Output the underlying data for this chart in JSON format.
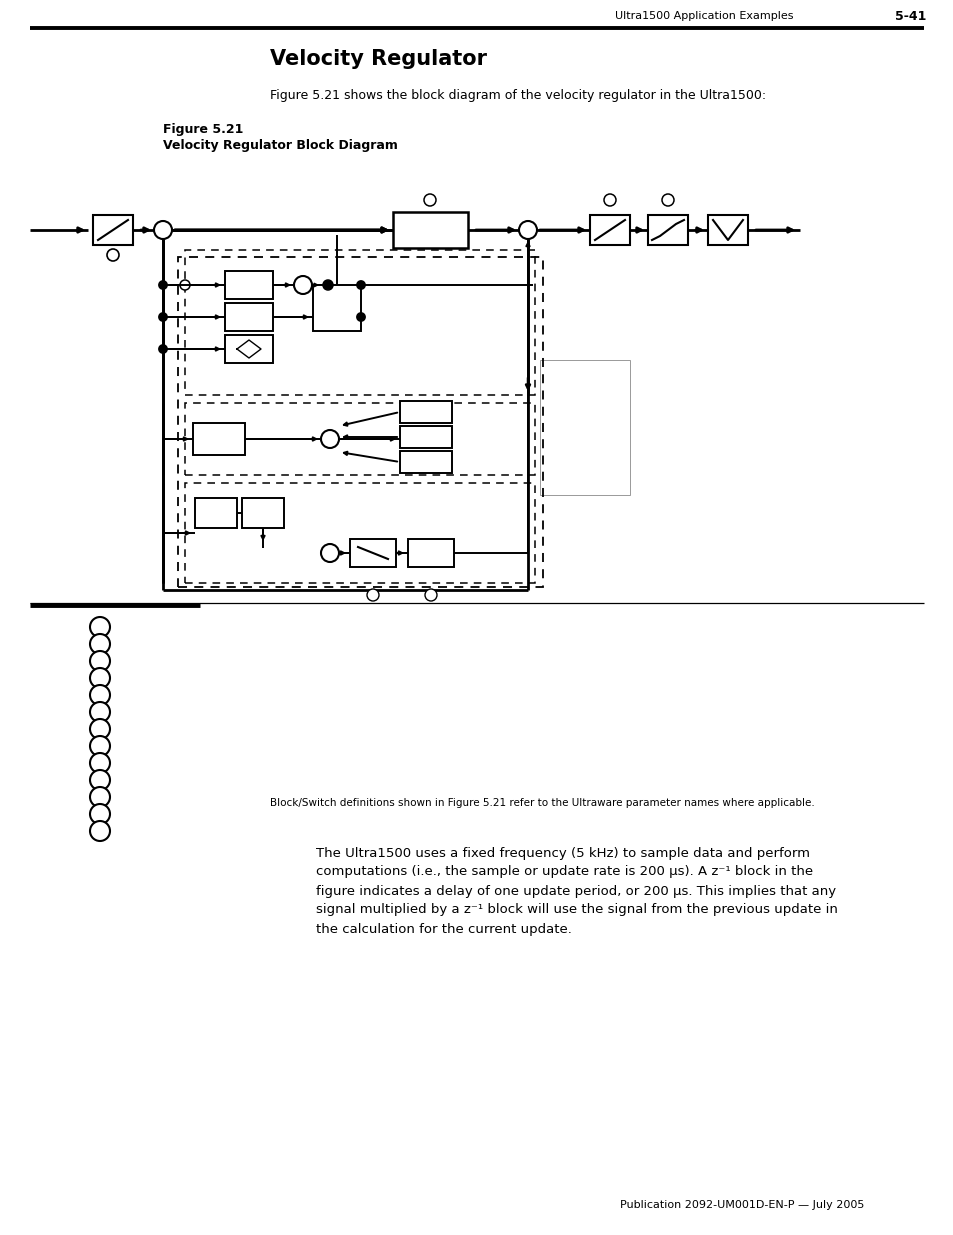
{
  "page_header_text": "Ultra1500 Application Examples",
  "page_number": "5-41",
  "section_title": "Velocity Regulator",
  "intro_text": "Figure 5.21 shows the block diagram of the velocity regulator in the Ultra1500:",
  "figure_label": "Figure 5.21",
  "figure_caption": "Velocity Regulator Block Diagram",
  "bottom_note": "Block/Switch definitions shown in Figure 5.21 refer to the Ultraware parameter names where applicable.",
  "body_paragraph": [
    "The Ultra1500 uses a fixed frequency (5 kHz) to sample data and perform",
    "computations (i.e., the sample or update rate is 200 μs). A z⁻¹ block in the",
    "figure indicates a delay of one update period, or 200 μs. This implies that any",
    "signal multiplied by a z⁻¹ block will use the signal from the previous update in",
    "the calculation for the current update."
  ],
  "footer_text": "Publication 2092-UM001D-EN-P — July 2005",
  "bg_color": "#ffffff"
}
